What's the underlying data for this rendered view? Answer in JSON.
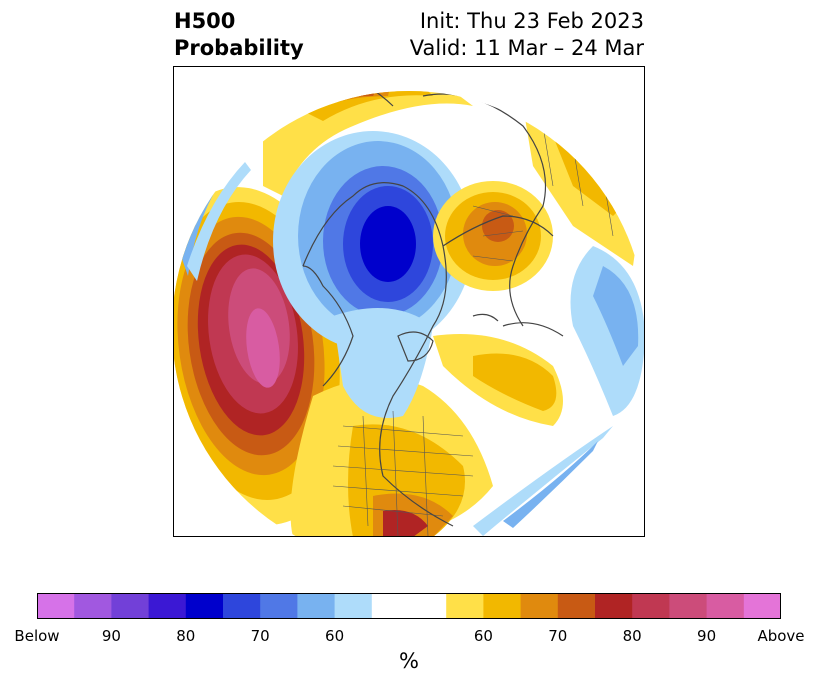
{
  "header": {
    "title_line1": "H500",
    "title_line2": "Probability",
    "init_text": "Init: Thu 23 Feb 2023",
    "valid_text": "Valid: 11 Mar – 24 Mar"
  },
  "colorbar": {
    "colors": [
      "#d672e8",
      "#a158e0",
      "#7240d8",
      "#3b18d4",
      "#0000cc",
      "#2e46dc",
      "#5078e6",
      "#78b2f0",
      "#aedcfa",
      "#ffffff",
      "#ffe048",
      "#f2b800",
      "#e08a0e",
      "#c85a14",
      "#b02424",
      "#c03852",
      "#cc4c7a",
      "#d85ca2",
      "#e474d8"
    ],
    "tick_labels": [
      "Below",
      "90",
      "80",
      "70",
      "60",
      "60",
      "70",
      "80",
      "90",
      "Above"
    ],
    "unit": "%"
  }
}
